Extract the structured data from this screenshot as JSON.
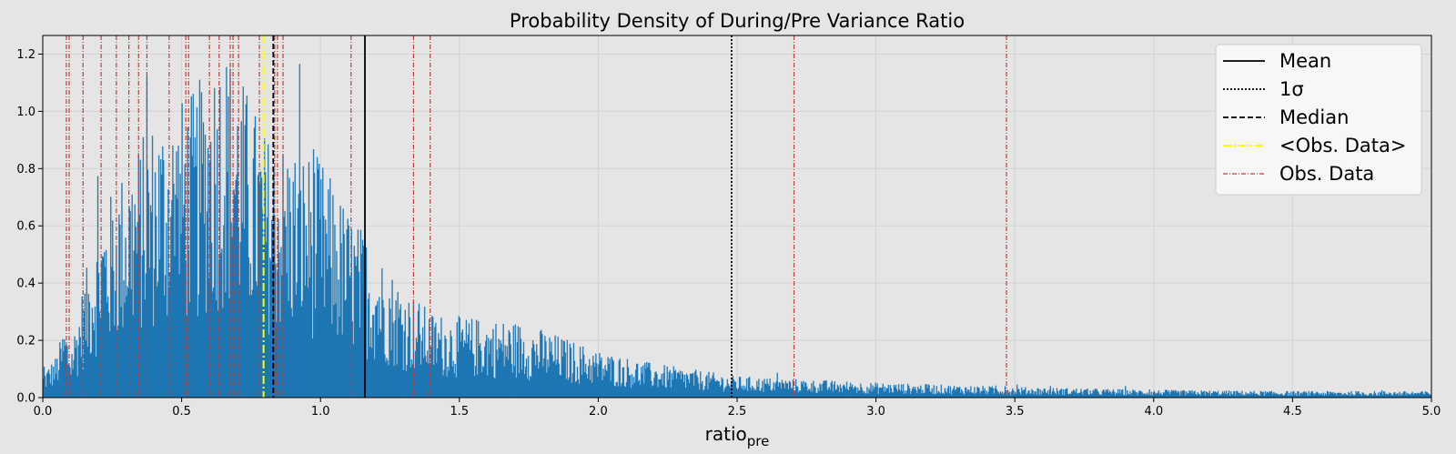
{
  "chart_data": {
    "type": "bar",
    "title": "Probability Density of During/Pre Variance Ratio",
    "xlabel_main": "ratio",
    "xlabel_sub": "pre",
    "ylabel": "",
    "xlim": [
      0.0,
      5.0
    ],
    "ylim": [
      0.0,
      1.265
    ],
    "x_ticks": [
      "0.0",
      "0.5",
      "1.0",
      "1.5",
      "2.0",
      "2.5",
      "3.0",
      "3.5",
      "4.0",
      "4.5",
      "5.0"
    ],
    "x_tick_values": [
      0.0,
      0.5,
      1.0,
      1.5,
      2.0,
      2.5,
      3.0,
      3.5,
      4.0,
      4.5,
      5.0
    ],
    "y_ticks": [
      "0.0",
      "0.2",
      "0.4",
      "0.6",
      "0.8",
      "1.0",
      "1.2"
    ],
    "y_tick_values": [
      0.0,
      0.2,
      0.4,
      0.6,
      0.8,
      1.0,
      1.2
    ],
    "grid": true,
    "legend_position": "top-right",
    "bar_color": "#1f77b4",
    "histogram_envelope": [
      [
        0.0,
        0.06
      ],
      [
        0.05,
        0.1
      ],
      [
        0.08,
        0.18
      ],
      [
        0.1,
        0.12
      ],
      [
        0.15,
        0.28
      ],
      [
        0.2,
        0.42
      ],
      [
        0.3,
        0.55
      ],
      [
        0.4,
        0.66
      ],
      [
        0.5,
        0.7
      ],
      [
        0.55,
        0.72
      ],
      [
        0.6,
        0.8
      ],
      [
        0.65,
        0.85
      ],
      [
        0.7,
        0.78
      ],
      [
        0.8,
        0.62
      ],
      [
        0.9,
        0.6
      ],
      [
        1.0,
        0.56
      ],
      [
        1.1,
        0.44
      ],
      [
        1.2,
        0.35
      ],
      [
        1.3,
        0.26
      ],
      [
        1.4,
        0.2
      ],
      [
        1.5,
        0.19
      ],
      [
        1.7,
        0.18
      ],
      [
        1.8,
        0.16
      ],
      [
        2.0,
        0.11
      ],
      [
        2.2,
        0.08
      ],
      [
        2.5,
        0.05
      ],
      [
        3.0,
        0.035
      ],
      [
        3.5,
        0.025
      ],
      [
        4.0,
        0.018
      ],
      [
        4.5,
        0.015
      ],
      [
        5.0,
        0.015
      ]
    ],
    "mean": 1.16,
    "median": 0.83,
    "one_sigma": 2.48,
    "obs_mean": 0.795,
    "obs_data": [
      0.085,
      0.095,
      0.145,
      0.21,
      0.265,
      0.31,
      0.345,
      0.375,
      0.455,
      0.515,
      0.525,
      0.6,
      0.635,
      0.675,
      0.685,
      0.705,
      0.78,
      0.835,
      0.845,
      0.865,
      1.11,
      1.335,
      1.395,
      2.705,
      3.47
    ],
    "colors": {
      "mean": "#000000",
      "sigma": "#000000",
      "median": "#000000",
      "obs_mean": "#ffff00",
      "obs_data": "#b5413e"
    },
    "legend": [
      {
        "key": "mean",
        "label": "Mean"
      },
      {
        "key": "sigma",
        "label": "1σ"
      },
      {
        "key": "median",
        "label": "Median"
      },
      {
        "key": "obs_mean",
        "label": "<Obs. Data>"
      },
      {
        "key": "obs_data",
        "label": "Obs. Data"
      }
    ]
  }
}
